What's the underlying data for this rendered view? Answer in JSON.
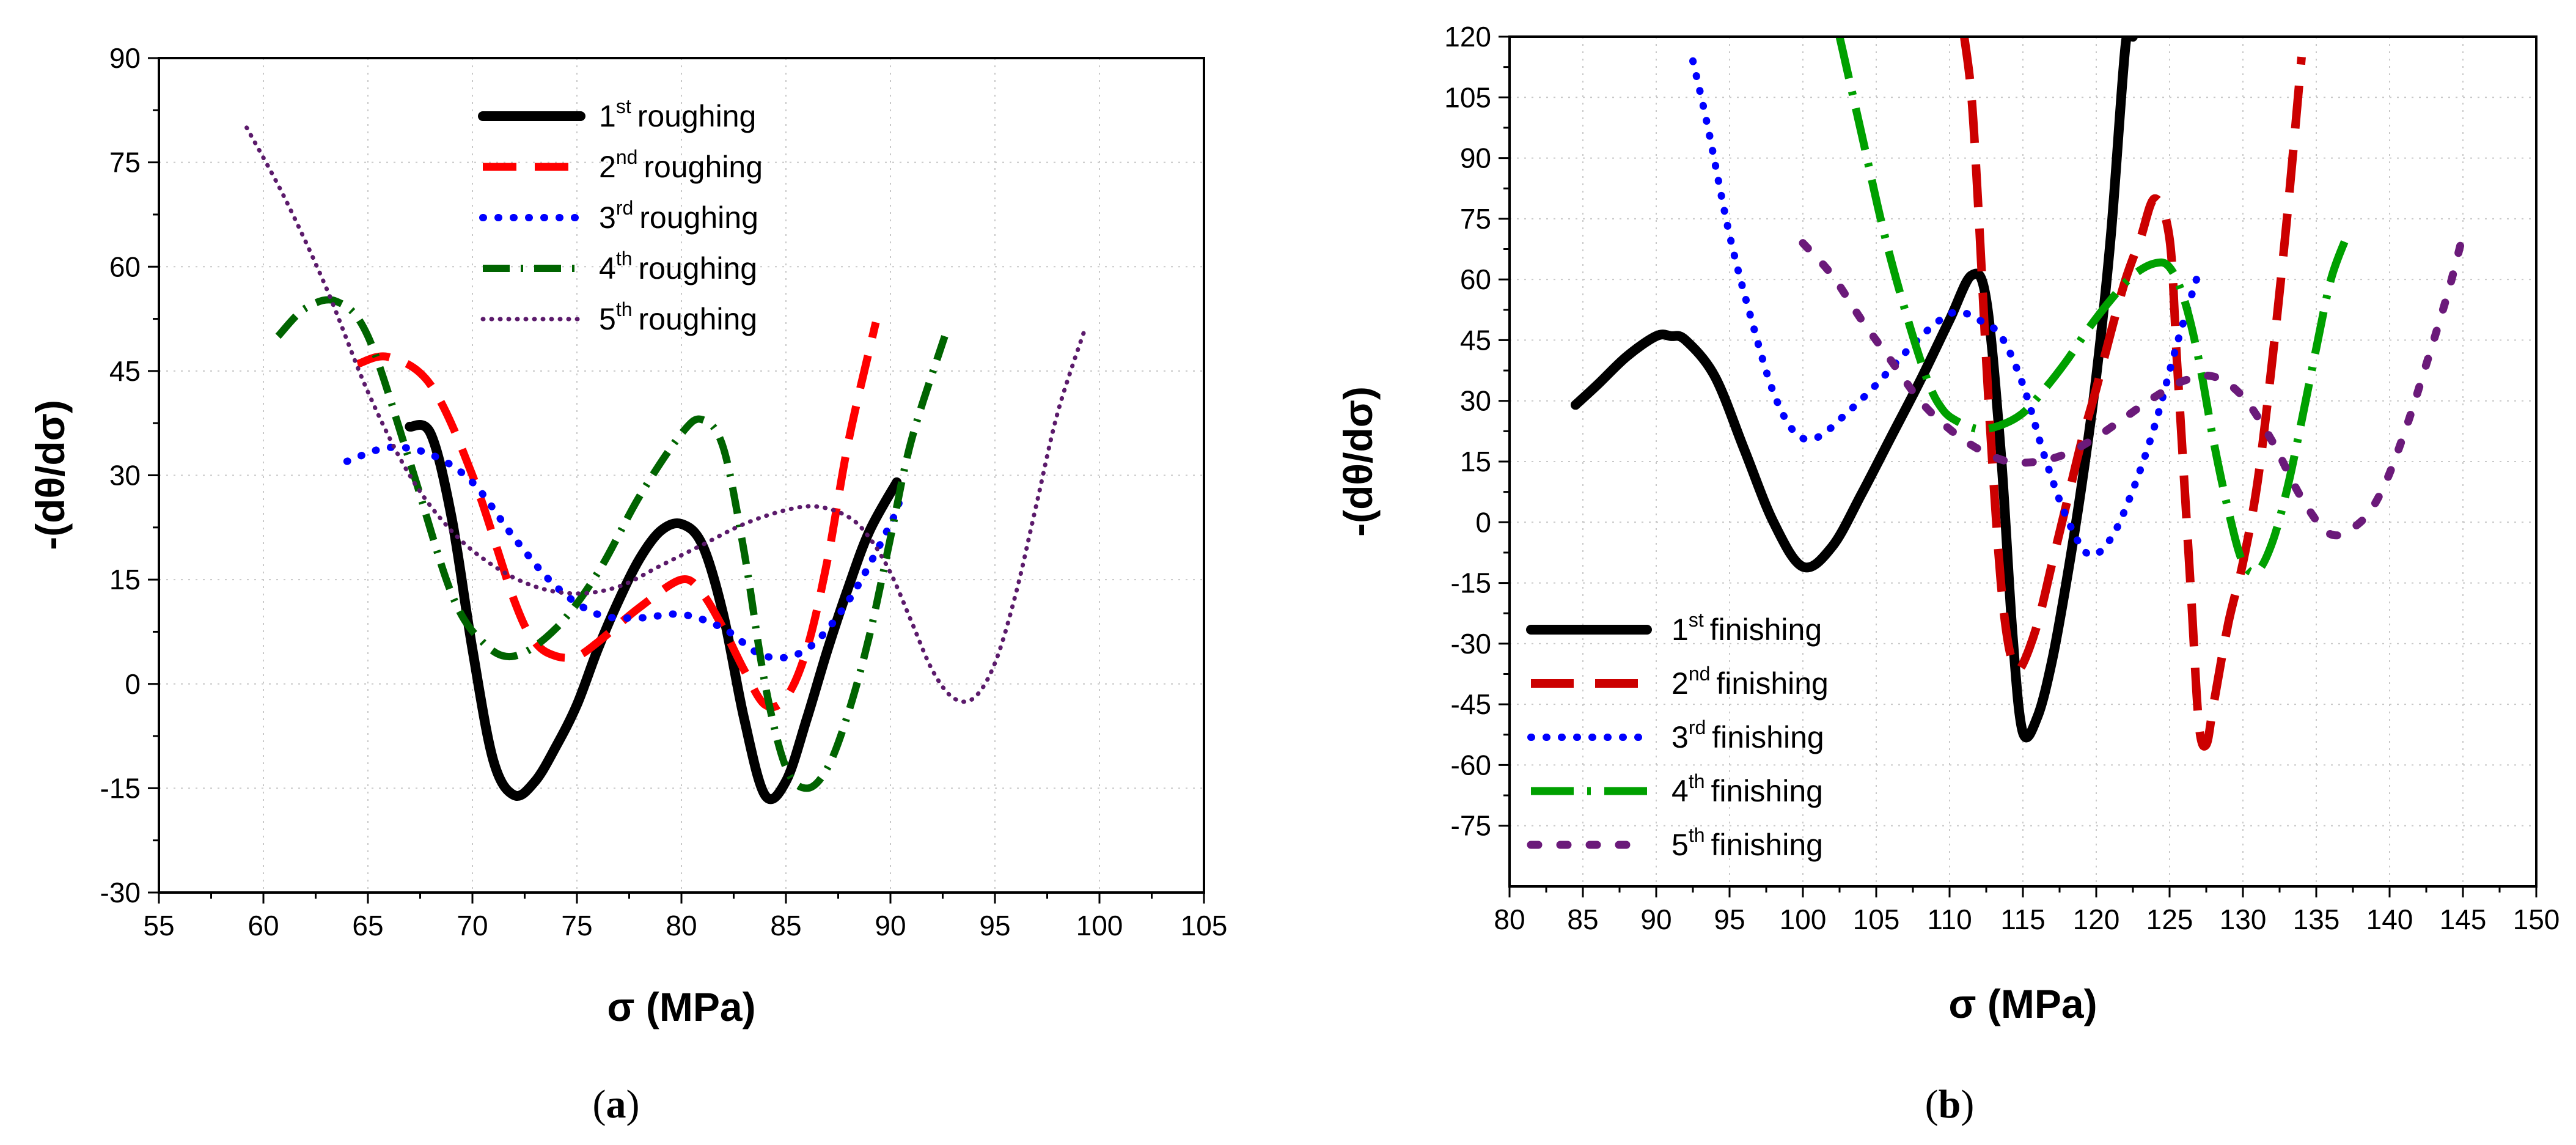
{
  "chart_data": [
    {
      "type": "line",
      "panel_label": "(a)",
      "xlabel": "σ (MPa)",
      "ylabel": "-(dθ/dσ)",
      "xlim": [
        55,
        105
      ],
      "ylim": [
        -30,
        90
      ],
      "xticks": [
        55,
        60,
        65,
        70,
        75,
        80,
        85,
        90,
        95,
        100,
        105
      ],
      "yticks": [
        -30,
        -15,
        0,
        15,
        30,
        45,
        60,
        75,
        90
      ],
      "grid": true,
      "legend_position": "top-center",
      "series": [
        {
          "name": "1st roughing",
          "label_num": "1",
          "label_sup": "st",
          "label_word": "roughing",
          "color": "#000000",
          "style": "solid",
          "x": [
            67,
            68,
            69,
            70,
            71,
            72,
            73,
            74,
            75,
            76,
            77,
            78,
            79,
            80,
            81,
            82,
            83,
            84,
            85,
            86,
            87,
            88,
            89,
            90.3
          ],
          "y": [
            37,
            36,
            24,
            5,
            -11,
            -16,
            -14,
            -9,
            -3,
            5,
            12,
            18,
            22,
            23,
            20,
            10,
            -5,
            -16,
            -14,
            -5,
            5,
            14,
            22,
            29
          ]
        },
        {
          "name": "2nd roughing",
          "label_num": "2",
          "label_sup": "nd",
          "label_word": "roughing",
          "color": "#ff0000",
          "style": "dash",
          "x": [
            64.5,
            66,
            68,
            70,
            72,
            73,
            74,
            75,
            76,
            78,
            80,
            81,
            82,
            83,
            84,
            85,
            86,
            87,
            88,
            89.3
          ],
          "y": [
            46,
            47,
            43,
            30,
            12,
            6,
            4,
            4,
            6,
            11,
            15,
            13,
            8,
            2,
            -3,
            -2,
            5,
            18,
            35,
            52
          ]
        },
        {
          "name": "3rd roughing",
          "label_num": "3",
          "label_sup": "rd",
          "label_word": "roughing",
          "color": "#0000ff",
          "style": "dot",
          "x": [
            64,
            66,
            68,
            70,
            72,
            74,
            76,
            78,
            80,
            82,
            84,
            86,
            88,
            90,
            90.5
          ],
          "y": [
            32,
            34,
            33,
            29,
            21,
            14,
            10,
            9.5,
            10,
            8,
            4,
            5,
            12,
            23,
            27
          ]
        },
        {
          "name": "4th roughing",
          "label_num": "4",
          "label_sup": "th",
          "label_word": "roughing",
          "color": "#006400",
          "style": "dashdot",
          "x": [
            60.7,
            62,
            63.5,
            65,
            67,
            69,
            70.5,
            72,
            74,
            76,
            78,
            80,
            81,
            82,
            83,
            84,
            85,
            86,
            87,
            88,
            89,
            90,
            91,
            92.6
          ],
          "y": [
            50,
            54,
            55,
            50,
            32,
            13,
            6,
            4,
            8,
            16,
            27,
            36,
            38,
            34,
            19,
            0,
            -12,
            -15,
            -12,
            -4,
            7,
            21,
            35,
            50
          ]
        },
        {
          "name": "5th roughing",
          "label_num": "5",
          "label_sup": "th",
          "label_word": "roughing",
          "color": "#5b1a6b",
          "style": "densedot",
          "x": [
            59.2,
            61,
            63,
            65,
            67,
            69,
            71,
            73,
            75,
            77,
            79,
            81,
            83,
            85,
            86.5,
            88,
            89,
            90,
            91,
            92,
            93,
            94,
            95,
            96,
            97,
            98,
            99.3
          ],
          "y": [
            80,
            70,
            57,
            42,
            30,
            22,
            17,
            14,
            13,
            14,
            17,
            20,
            23,
            25,
            25.5,
            24,
            21,
            16,
            9,
            2,
            -2,
            -2,
            3,
            13,
            26,
            39,
            51
          ]
        }
      ]
    },
    {
      "type": "line",
      "panel_label": "(b)",
      "xlabel": "σ (MPa)",
      "ylabel": "-(dθ/dσ)",
      "xlim": [
        80,
        150
      ],
      "ylim": [
        -90,
        120
      ],
      "xticks": [
        80,
        85,
        90,
        95,
        100,
        105,
        110,
        115,
        120,
        125,
        130,
        135,
        140,
        145,
        150
      ],
      "yticks": [
        -75,
        -60,
        -45,
        -30,
        -15,
        0,
        15,
        30,
        45,
        60,
        75,
        90,
        105,
        120
      ],
      "grid": true,
      "legend_position": "bottom-left",
      "series": [
        {
          "name": "1st finishing",
          "label_num": "1",
          "label_sup": "st",
          "label_word": "finishing",
          "color": "#000000",
          "style": "solid",
          "x": [
            84.5,
            86,
            88,
            90,
            91,
            92,
            94,
            96,
            98,
            100,
            102,
            104,
            106,
            108,
            110,
            111.5,
            112.5,
            113.5,
            114.3,
            115,
            116,
            117,
            118,
            119,
            120,
            121,
            122,
            122.5
          ],
          "y": [
            29,
            34,
            41,
            46,
            46,
            45,
            36,
            18,
            0,
            -11,
            -6,
            7,
            21,
            35,
            50,
            61,
            55,
            17,
            -28,
            -52,
            -48,
            -34,
            -14,
            9,
            36,
            71,
            118,
            120
          ]
        },
        {
          "name": "2nd finishing",
          "label_num": "2",
          "label_sup": "nd",
          "label_word": "finishing",
          "color": "#cc0000",
          "style": "longdash",
          "x": [
            111,
            111.5,
            112,
            112.5,
            113,
            113.5,
            114,
            114.5,
            115,
            116,
            117,
            118,
            119,
            120,
            121,
            122,
            123,
            124,
            125,
            125.5,
            126,
            126.5,
            127,
            127.5,
            128,
            129,
            130,
            131,
            132,
            133,
            134
          ],
          "y": [
            120,
            105,
            75,
            40,
            10,
            -15,
            -30,
            -36,
            -35,
            -25,
            -10,
            5,
            20,
            33,
            47,
            60,
            70,
            80,
            70,
            40,
            10,
            -20,
            -50,
            -55,
            -45,
            -25,
            -10,
            10,
            40,
            75,
            115
          ]
        },
        {
          "name": "3rd finishing",
          "label_num": "3",
          "label_sup": "rd",
          "label_word": "finishing",
          "color": "#0000ff",
          "style": "dot",
          "x": [
            92.5,
            93.5,
            95,
            96.5,
            98,
            99.5,
            101,
            103,
            105,
            107,
            109,
            110.5,
            112,
            113.5,
            115,
            116.5,
            118,
            119.5,
            121,
            122.5,
            124,
            125.5,
            127
          ],
          "y": [
            114,
            98,
            71,
            50,
            32,
            22,
            21,
            27,
            34,
            42,
            49,
            52,
            50,
            46,
            34,
            16,
            1,
            -8,
            -4,
            8,
            24,
            44,
            62
          ]
        },
        {
          "name": "4th finishing",
          "label_num": "4",
          "label_sup": "th",
          "label_word": "finishing",
          "color": "#00a000",
          "style": "longdashdot",
          "x": [
            102.5,
            104,
            105.5,
            107,
            108.5,
            109.5,
            110.5,
            112,
            113.5,
            115,
            116.5,
            118,
            119.5,
            121,
            122.5,
            124,
            125,
            126,
            127,
            128,
            129,
            130,
            131,
            132,
            133,
            134,
            135,
            136,
            137
          ],
          "y": [
            120,
            96,
            72,
            52,
            35,
            28,
            25,
            23,
            24,
            27,
            33,
            40,
            48,
            55,
            61,
            64,
            63,
            55,
            40,
            20,
            3,
            -10,
            -12,
            -5,
            8,
            25,
            43,
            60,
            70
          ]
        },
        {
          "name": "5th finishing",
          "label_num": "5",
          "label_sup": "th",
          "label_word": "finishing",
          "color": "#6b1a7a",
          "style": "sparsedash",
          "x": [
            100,
            102,
            104,
            106,
            108,
            110,
            112,
            114,
            116,
            118,
            120,
            122,
            124,
            126,
            128,
            130,
            132,
            134,
            136,
            138,
            139.5,
            141,
            142.5,
            144,
            145
          ],
          "y": [
            69,
            61,
            50,
            40,
            30,
            23,
            18,
            15,
            15,
            17,
            21,
            26,
            31,
            35,
            36,
            31,
            20,
            6,
            -3,
            0,
            8,
            22,
            39,
            57,
            71
          ]
        }
      ]
    }
  ]
}
